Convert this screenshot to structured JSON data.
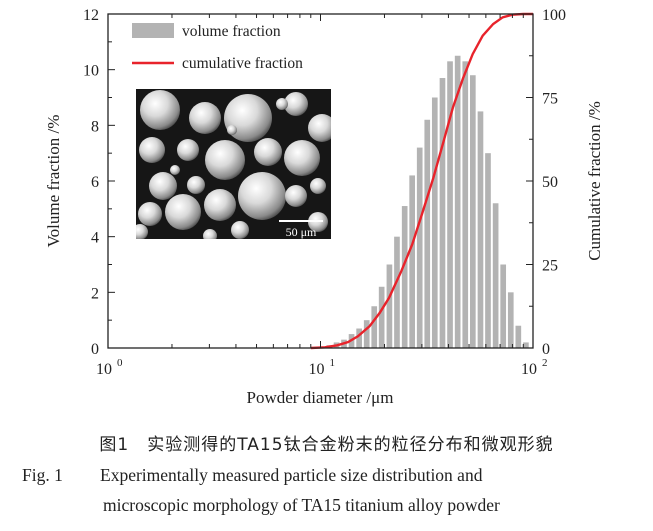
{
  "chart_data": {
    "type": "bar",
    "x_scale": "log",
    "xlim": [
      1,
      100
    ],
    "ylim_left": [
      0,
      12
    ],
    "ylim_right": [
      0,
      100
    ],
    "xlabel": "Powder diameter /μm",
    "ylabel_left": "Volume fraction /%",
    "ylabel_right": "Cumulative fraction /%",
    "x_ticks": [
      {
        "value": 1,
        "base": "10",
        "exp": "0"
      },
      {
        "value": 10,
        "base": "10",
        "exp": "1"
      },
      {
        "value": 100,
        "base": "10",
        "exp": "2"
      }
    ],
    "y_ticks_left": [
      "0",
      "2",
      "4",
      "6",
      "8",
      "10",
      "12"
    ],
    "y_ticks_right": [
      "0",
      "25",
      "50",
      "75",
      "100"
    ],
    "legend": {
      "placement": "top-left",
      "bar_label": "volume fraction",
      "line_label": "cumulative fraction"
    },
    "colors": {
      "bars": "#b3b3b3",
      "line": "#e8232b",
      "axes": "#222222"
    },
    "series": [
      {
        "name": "volume fraction",
        "kind": "bar",
        "axis": "left",
        "x": [
          11.0,
          11.9,
          12.9,
          14.0,
          15.2,
          16.5,
          17.9,
          19.4,
          21.1,
          22.9,
          24.9,
          27.0,
          29.3,
          31.8,
          34.5,
          37.5,
          40.7,
          44.2,
          48.0,
          52.1,
          56.6,
          61.4,
          66.7,
          72.4,
          78.6,
          85.3,
          92.6
        ],
        "values": [
          0.1,
          0.2,
          0.3,
          0.5,
          0.7,
          1.0,
          1.5,
          2.2,
          3.0,
          4.0,
          5.1,
          6.2,
          7.2,
          8.2,
          9.0,
          9.7,
          10.3,
          10.5,
          10.3,
          9.8,
          8.5,
          7.0,
          5.2,
          3.0,
          2.0,
          0.8,
          0.2
        ]
      },
      {
        "name": "cumulative fraction",
        "kind": "line",
        "axis": "right",
        "x": [
          9.0,
          10.5,
          12.0,
          13.5,
          15.0,
          17.0,
          19.0,
          21.0,
          24.0,
          27.0,
          30.0,
          34.0,
          38.0,
          42.0,
          47.0,
          52.0,
          58.0,
          65.0,
          72.0,
          80.0,
          90.0,
          100.0
        ],
        "values": [
          0.0,
          0.2,
          0.8,
          1.8,
          3.5,
          6.5,
          10.5,
          15.0,
          23.0,
          31.0,
          40.0,
          51.0,
          62.0,
          72.0,
          81.0,
          88.0,
          93.5,
          97.0,
          99.0,
          99.8,
          100.0,
          100.0
        ]
      }
    ]
  },
  "inset": {
    "scale_bar_label": "50 μm"
  },
  "caption": {
    "zh": "图1　实验测得的TA15钛合金粉末的粒径分布和微观形貌",
    "en_label": "Fig. 1",
    "en_line1": "Experimentally measured particle size distribution and",
    "en_line2": "microscopic morphology of TA15 titanium alloy powder"
  }
}
